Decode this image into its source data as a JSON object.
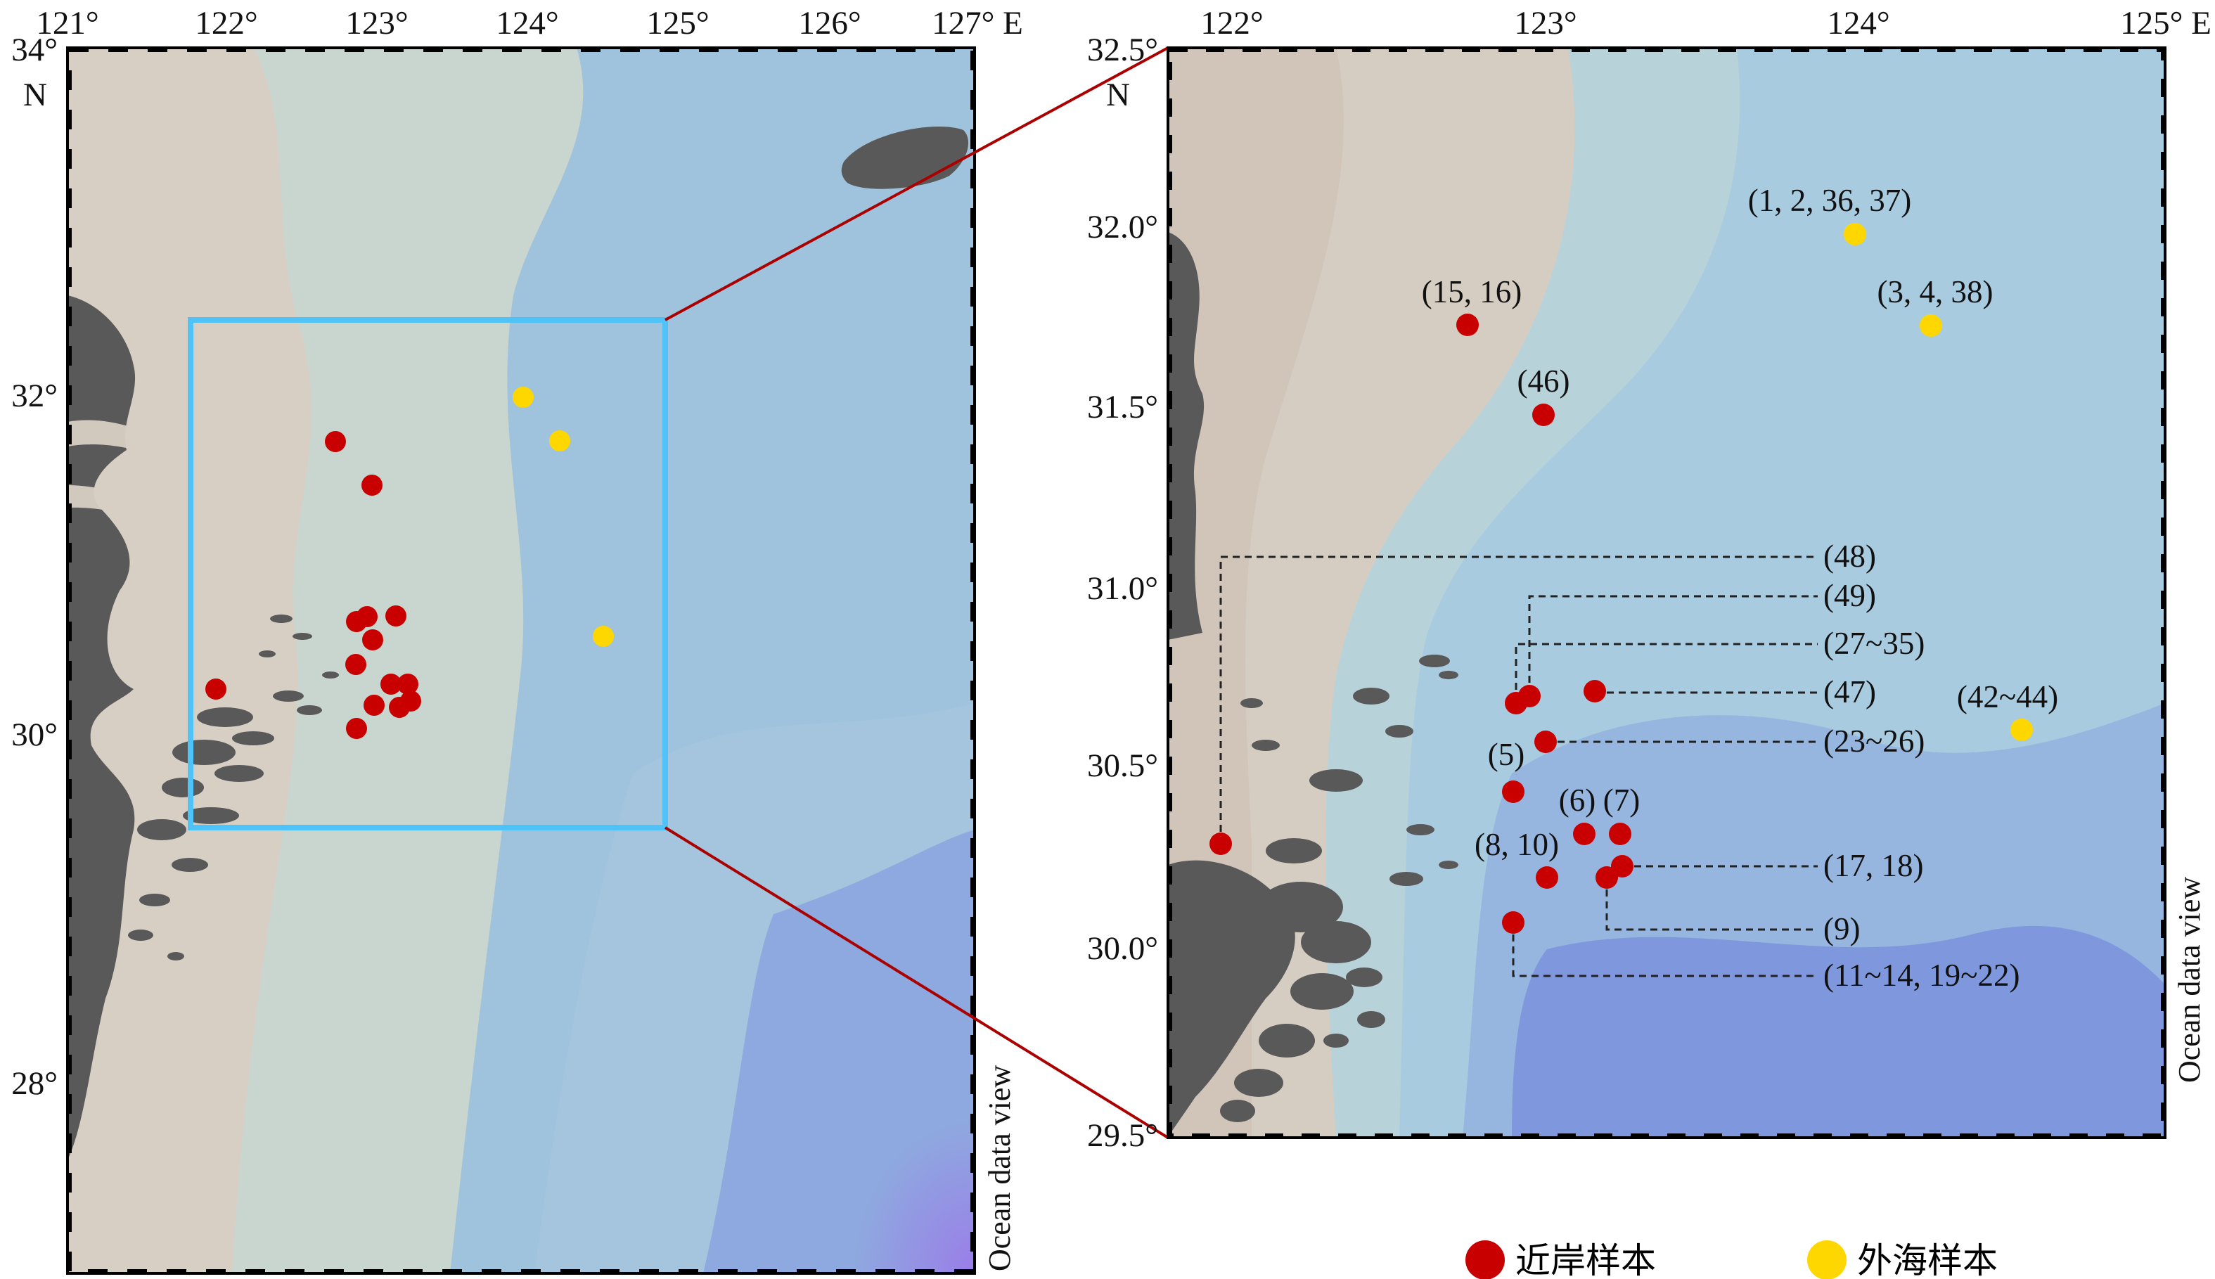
{
  "left_map": {
    "top_ticks": [
      "121°",
      "122°",
      "123°",
      "124°",
      "125°",
      "126°",
      "127° E"
    ],
    "left_ticks": [
      "34°",
      "32°",
      "30°",
      "28°"
    ],
    "north_label": "N",
    "credit": "Ocean data view"
  },
  "right_map": {
    "top_ticks": [
      "122°",
      "123°",
      "124°",
      "125° E"
    ],
    "left_ticks": [
      "32.5°",
      "32.0°",
      "31.5°",
      "31.0°",
      "30.5°",
      "30.0°",
      "29.5°"
    ],
    "north_label": "N",
    "credit": "Ocean data view",
    "annotations": {
      "a1": "(1, 2, 36, 37)",
      "a2": "(3, 4, 38)",
      "a3": "(15, 16)",
      "a4": "(46)",
      "a5": "(42~44)",
      "a6": "(5)",
      "a7": "(6)",
      "a8": "(7)",
      "a9": "(8, 10)"
    },
    "leaders": {
      "l1": "(48)",
      "l2": "(49)",
      "l3": "(27~35)",
      "l4": "(47)",
      "l5": "(23~26)",
      "l6": "(17, 18)",
      "l7": "(9)",
      "l8": "(11~14, 19~22)"
    }
  },
  "legend": {
    "coastal": "近岸样本",
    "offshore": "外海样本"
  },
  "colors": {
    "coastal": "#c80000",
    "offshore": "#ffd700",
    "inset_box": "#4fc3f7",
    "zoom_line": "#aa0000",
    "land": "#595959"
  }
}
